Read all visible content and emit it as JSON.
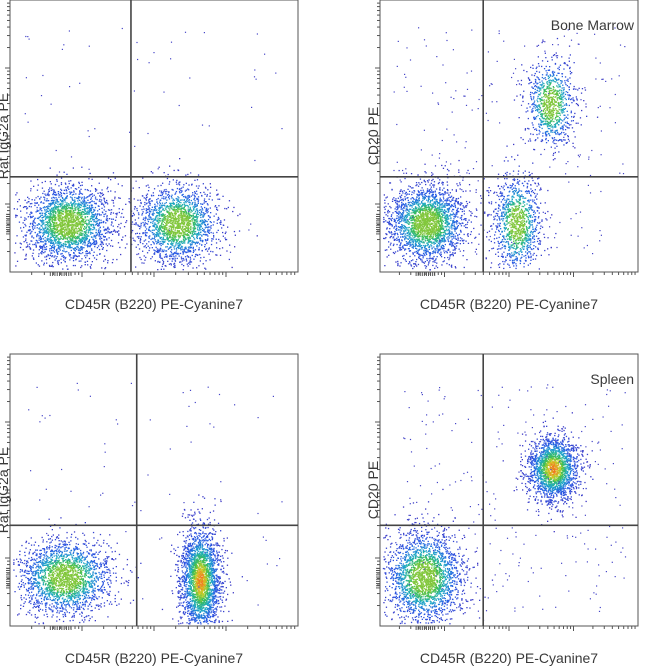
{
  "chart_data": [
    {
      "type": "scatter",
      "title": "",
      "annotation": "",
      "xlabel": "CD45R (B220) PE-Cyanine7",
      "ylabel": "Rat IgG2a PE",
      "x_scale": "log",
      "y_scale": "log",
      "gate": {
        "x": 0.42,
        "y": 0.35
      },
      "populations": [
        {
          "name": "",
          "x": 0.2,
          "y": 0.18,
          "sx": 0.075,
          "sy": 0.07,
          "count": 2300,
          "peak": "green"
        },
        {
          "name": "",
          "x": 0.58,
          "y": 0.18,
          "sx": 0.07,
          "sy": 0.07,
          "count": 1900,
          "peak": "green"
        }
      ],
      "background_events": 70
    },
    {
      "type": "scatter",
      "title": "",
      "annotation": "Bone Marrow",
      "xlabel": "CD45R (B220) PE-Cyanine7",
      "ylabel": "CD20 PE",
      "x_scale": "log",
      "y_scale": "log",
      "gate": {
        "x": 0.4,
        "y": 0.35
      },
      "populations": [
        {
          "name": "",
          "x": 0.18,
          "y": 0.18,
          "sx": 0.075,
          "sy": 0.07,
          "count": 2400,
          "peak": "green"
        },
        {
          "name": "",
          "x": 0.53,
          "y": 0.18,
          "sx": 0.045,
          "sy": 0.09,
          "count": 1100,
          "peak": "green"
        },
        {
          "name": "",
          "x": 0.66,
          "y": 0.62,
          "sx": 0.045,
          "sy": 0.08,
          "count": 900,
          "peak": "green"
        }
      ],
      "background_events": 220
    },
    {
      "type": "scatter",
      "title": "",
      "annotation": "",
      "xlabel": "CD45R (B220) PE-Cyanine7",
      "ylabel": "Rat IgG2a PE",
      "x_scale": "log",
      "y_scale": "log",
      "gate": {
        "x": 0.44,
        "y": 0.37
      },
      "populations": [
        {
          "name": "",
          "x": 0.19,
          "y": 0.18,
          "sx": 0.08,
          "sy": 0.07,
          "count": 2100,
          "peak": "green"
        },
        {
          "name": "",
          "x": 0.66,
          "y": 0.17,
          "sx": 0.035,
          "sy": 0.1,
          "count": 2500,
          "peak": "orange"
        }
      ],
      "background_events": 80
    },
    {
      "type": "scatter",
      "title": "",
      "annotation": "Spleen",
      "xlabel": "CD45R (B220) PE-Cyanine7",
      "ylabel": "CD20 PE",
      "x_scale": "log",
      "y_scale": "log",
      "gate": {
        "x": 0.4,
        "y": 0.37
      },
      "populations": [
        {
          "name": "",
          "x": 0.17,
          "y": 0.18,
          "sx": 0.075,
          "sy": 0.085,
          "count": 2300,
          "peak": "green"
        },
        {
          "name": "",
          "x": 0.67,
          "y": 0.58,
          "sx": 0.05,
          "sy": 0.06,
          "count": 1900,
          "peak": "orange"
        }
      ],
      "background_events": 260
    }
  ]
}
